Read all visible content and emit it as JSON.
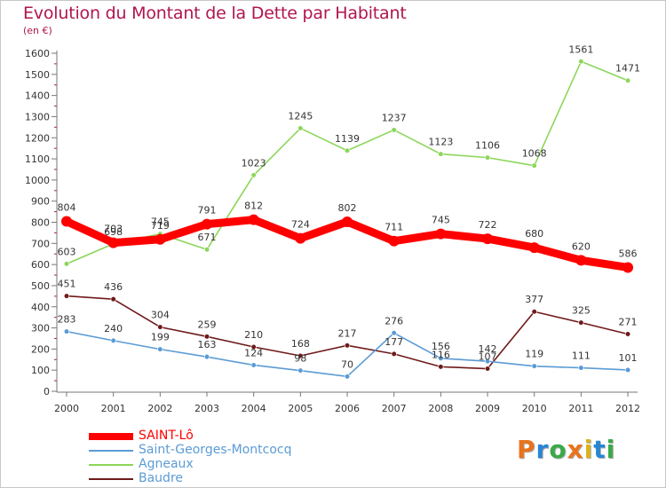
{
  "title": "Evolution du Montant de la Dette par Habitant",
  "unit": "(en €)",
  "brand": "Proxiti",
  "brand_colors": [
    "#e8731c",
    "#2a86d1",
    "#3aa94a",
    "#e8731c",
    "#d8b520",
    "#2a86d1",
    "#3aa94a"
  ],
  "chart_data": {
    "type": "line",
    "title": "Evolution du Montant de la Dette par Habitant",
    "ylabel": "(en €)",
    "xlabel": "",
    "x": [
      "2000",
      "2001",
      "2002",
      "2003",
      "2004",
      "2005",
      "2006",
      "2007",
      "2008",
      "2009",
      "2010",
      "2011",
      "2012"
    ],
    "ylim": [
      0,
      1600
    ],
    "yticks": [
      "0",
      "100",
      "200",
      "300",
      "400",
      "500",
      "600",
      "700",
      "800",
      "900",
      "1000",
      "1100",
      "1200",
      "1300",
      "1400",
      "1500",
      "1600"
    ],
    "legend_position": "bottom-left",
    "series": [
      {
        "name": "SAINT-Lô",
        "color": "#ff0000",
        "values": [
          804,
          703,
          719,
          791,
          812,
          724,
          802,
          711,
          745,
          722,
          680,
          620,
          586
        ],
        "labels": [
          "804",
          "703",
          "719",
          "791",
          "812",
          "724",
          "802",
          "711",
          "745",
          "722",
          "680",
          "620",
          "586"
        ]
      },
      {
        "name": "Saint-Georges-Montcocq",
        "color": "#5b9bd5",
        "values": [
          283,
          240,
          199,
          163,
          124,
          98,
          70,
          276,
          156,
          142,
          119,
          111,
          101
        ],
        "labels": [
          "283",
          "240",
          "199",
          "163",
          "124",
          "98",
          "70",
          "276",
          "156",
          "142",
          "119",
          "111",
          "101"
        ]
      },
      {
        "name": "Agneaux",
        "color": "#8cd65a",
        "values": [
          603,
          698,
          745,
          671,
          1023,
          1245,
          1139,
          1237,
          1123,
          1106,
          1068,
          1561,
          1471
        ],
        "labels": [
          "603",
          "698",
          "745",
          "671",
          "1023",
          "1245",
          "1139",
          "1237",
          "1123",
          "1106",
          "1068",
          "1561",
          "1471"
        ]
      },
      {
        "name": "Baudre",
        "color": "#6e1a1a",
        "values": [
          451,
          436,
          304,
          259,
          210,
          168,
          217,
          177,
          116,
          107,
          377,
          325,
          271
        ],
        "labels": [
          "451",
          "436",
          "304",
          "259",
          "210",
          "168",
          "217",
          "177",
          "116",
          "107",
          "377",
          "325",
          "271"
        ]
      }
    ]
  }
}
